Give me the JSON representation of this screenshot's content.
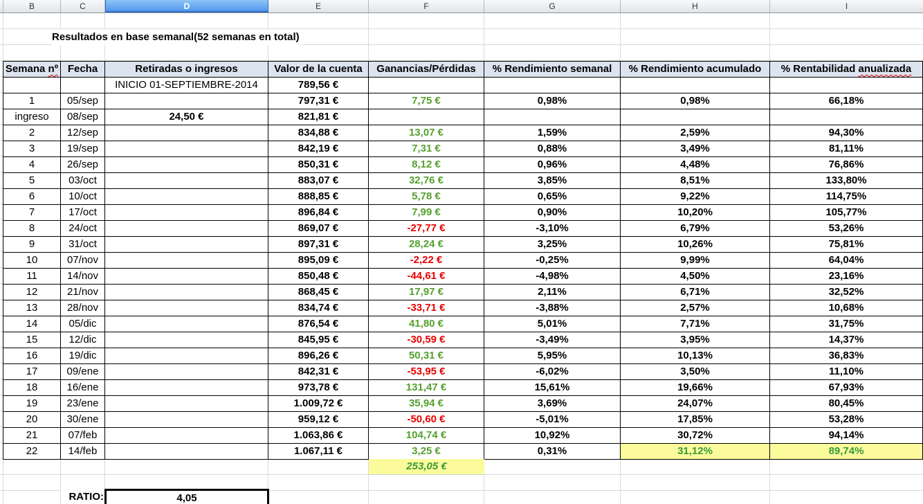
{
  "app": {
    "selected_column": "D"
  },
  "column_strip": [
    "B",
    "C",
    "D",
    "E",
    "F",
    "G",
    "H",
    "I"
  ],
  "title": "Resultados en base semanal(52 semanas en total)",
  "colors": {
    "gain_green": "#55A02E",
    "loss_red": "#E90000",
    "highlight_yellow": "#FBFB9B",
    "header_fill": "#DCE4F0",
    "selected_column_blue": "#4A92EE",
    "gridline_gray": "#D9D9D9"
  },
  "table": {
    "headers": {
      "semana_pre": "Semana ",
      "semana_sq": "nº",
      "fecha": "Fecha",
      "retiradas": "Retiradas o ingresos",
      "valor": "Valor de la cuenta",
      "ganancias": "Ganancias/Pérdidas",
      "rend_semanal": "% Rendimiento semanal",
      "rend_acumulado": "% Rendimiento acumulado",
      "rentab_pre": "% Rentabilidad ",
      "rentab_sq": "anualizada"
    },
    "columns": [
      "Semana nº",
      "Fecha",
      "Retiradas o ingresos",
      "Valor de la cuenta",
      "Ganancias/Pérdidas",
      "% Rendimiento semanal",
      "% Rendimiento acumulado",
      "% Rentabilidad anualizada"
    ],
    "rows": [
      {
        "week": "",
        "date": "",
        "deposit": "INICIO 01-SEPTIEMBRE-2014",
        "deposit_bold": false,
        "value": "789,56 €",
        "gain": "",
        "neg": false,
        "weekly": "",
        "accum": "",
        "annual": "",
        "hl": false
      },
      {
        "week": "1",
        "date": "05/sep",
        "deposit": "",
        "deposit_bold": false,
        "value": "797,31 €",
        "gain": "7,75 €",
        "neg": false,
        "weekly": "0,98%",
        "accum": "0,98%",
        "annual": "66,18%",
        "hl": false
      },
      {
        "week": "ingreso",
        "date": "08/sep",
        "deposit": "24,50 €",
        "deposit_bold": true,
        "value": "821,81 €",
        "gain": "",
        "neg": false,
        "weekly": "",
        "accum": "",
        "annual": "",
        "hl": false
      },
      {
        "week": "2",
        "date": "12/sep",
        "deposit": "",
        "deposit_bold": false,
        "value": "834,88 €",
        "gain": "13,07 €",
        "neg": false,
        "weekly": "1,59%",
        "accum": "2,59%",
        "annual": "94,30%",
        "hl": false
      },
      {
        "week": "3",
        "date": "19/sep",
        "deposit": "",
        "deposit_bold": false,
        "value": "842,19 €",
        "gain": "7,31 €",
        "neg": false,
        "weekly": "0,88%",
        "accum": "3,49%",
        "annual": "81,11%",
        "hl": false
      },
      {
        "week": "4",
        "date": "26/sep",
        "deposit": "",
        "deposit_bold": false,
        "value": "850,31 €",
        "gain": "8,12 €",
        "neg": false,
        "weekly": "0,96%",
        "accum": "4,48%",
        "annual": "76,86%",
        "hl": false
      },
      {
        "week": "5",
        "date": "03/oct",
        "deposit": "",
        "deposit_bold": false,
        "value": "883,07 €",
        "gain": "32,76 €",
        "neg": false,
        "weekly": "3,85%",
        "accum": "8,51%",
        "annual": "133,80%",
        "hl": false
      },
      {
        "week": "6",
        "date": "10/oct",
        "deposit": "",
        "deposit_bold": false,
        "value": "888,85 €",
        "gain": "5,78 €",
        "neg": false,
        "weekly": "0,65%",
        "accum": "9,22%",
        "annual": "114,75%",
        "hl": false
      },
      {
        "week": "7",
        "date": "17/oct",
        "deposit": "",
        "deposit_bold": false,
        "value": "896,84 €",
        "gain": "7,99 €",
        "neg": false,
        "weekly": "0,90%",
        "accum": "10,20%",
        "annual": "105,77%",
        "hl": false
      },
      {
        "week": "8",
        "date": "24/oct",
        "deposit": "",
        "deposit_bold": false,
        "value": "869,07 €",
        "gain": "-27,77 €",
        "neg": true,
        "weekly": "-3,10%",
        "accum": "6,79%",
        "annual": "53,26%",
        "hl": false
      },
      {
        "week": "9",
        "date": "31/oct",
        "deposit": "",
        "deposit_bold": false,
        "value": "897,31 €",
        "gain": "28,24 €",
        "neg": false,
        "weekly": "3,25%",
        "accum": "10,26%",
        "annual": "75,81%",
        "hl": false
      },
      {
        "week": "10",
        "date": "07/nov",
        "deposit": "",
        "deposit_bold": false,
        "value": "895,09 €",
        "gain": "-2,22 €",
        "neg": true,
        "weekly": "-0,25%",
        "accum": "9,99%",
        "annual": "64,04%",
        "hl": false
      },
      {
        "week": "11",
        "date": "14/nov",
        "deposit": "",
        "deposit_bold": false,
        "value": "850,48 €",
        "gain": "-44,61 €",
        "neg": true,
        "weekly": "-4,98%",
        "accum": "4,50%",
        "annual": "23,16%",
        "hl": false
      },
      {
        "week": "12",
        "date": "21/nov",
        "deposit": "",
        "deposit_bold": false,
        "value": "868,45 €",
        "gain": "17,97 €",
        "neg": false,
        "weekly": "2,11%",
        "accum": "6,71%",
        "annual": "32,52%",
        "hl": false
      },
      {
        "week": "13",
        "date": "28/nov",
        "deposit": "",
        "deposit_bold": false,
        "value": "834,74 €",
        "gain": "-33,71 €",
        "neg": true,
        "weekly": "-3,88%",
        "accum": "2,57%",
        "annual": "10,68%",
        "hl": false
      },
      {
        "week": "14",
        "date": "05/dic",
        "deposit": "",
        "deposit_bold": false,
        "value": "876,54 €",
        "gain": "41,80 €",
        "neg": false,
        "weekly": "5,01%",
        "accum": "7,71%",
        "annual": "31,75%",
        "hl": false
      },
      {
        "week": "15",
        "date": "12/dic",
        "deposit": "",
        "deposit_bold": false,
        "value": "845,95 €",
        "gain": "-30,59 €",
        "neg": true,
        "weekly": "-3,49%",
        "accum": "3,95%",
        "annual": "14,37%",
        "hl": false
      },
      {
        "week": "16",
        "date": "19/dic",
        "deposit": "",
        "deposit_bold": false,
        "value": "896,26 €",
        "gain": "50,31 €",
        "neg": false,
        "weekly": "5,95%",
        "accum": "10,13%",
        "annual": "36,83%",
        "hl": false
      },
      {
        "week": "17",
        "date": "09/ene",
        "deposit": "",
        "deposit_bold": false,
        "value": "842,31 €",
        "gain": "-53,95 €",
        "neg": true,
        "weekly": "-6,02%",
        "accum": "3,50%",
        "annual": "11,10%",
        "hl": false
      },
      {
        "week": "18",
        "date": "16/ene",
        "deposit": "",
        "deposit_bold": false,
        "value": "973,78 €",
        "gain": "131,47 €",
        "neg": false,
        "weekly": "15,61%",
        "accum": "19,66%",
        "annual": "67,93%",
        "hl": false
      },
      {
        "week": "19",
        "date": "23/ene",
        "deposit": "",
        "deposit_bold": false,
        "value": "1.009,72 €",
        "gain": "35,94 €",
        "neg": false,
        "weekly": "3,69%",
        "accum": "24,07%",
        "annual": "80,45%",
        "hl": false
      },
      {
        "week": "20",
        "date": "30/ene",
        "deposit": "",
        "deposit_bold": false,
        "value": "959,12 €",
        "gain": "-50,60 €",
        "neg": true,
        "weekly": "-5,01%",
        "accum": "17,85%",
        "annual": "53,28%",
        "hl": false
      },
      {
        "week": "21",
        "date": "07/feb",
        "deposit": "",
        "deposit_bold": false,
        "value": "1.063,86 €",
        "gain": "104,74 €",
        "neg": false,
        "weekly": "10,92%",
        "accum": "30,72%",
        "annual": "94,14%",
        "hl": false
      },
      {
        "week": "22",
        "date": "14/feb",
        "deposit": "",
        "deposit_bold": false,
        "value": "1.067,11 €",
        "gain": "3,25 €",
        "neg": false,
        "weekly": "0,31%",
        "accum": "31,12%",
        "annual": "89,74%",
        "hl": true
      }
    ],
    "total_gain": "253,05 €",
    "ratio_label": "RATIO:",
    "ratio_value": "4,05"
  }
}
